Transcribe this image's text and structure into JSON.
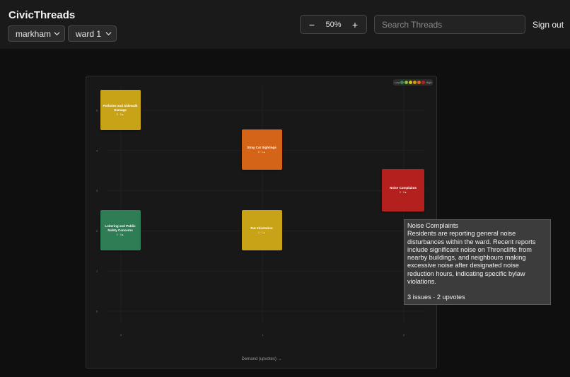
{
  "app": {
    "title": "CivicThreads"
  },
  "filters": {
    "city": "markham",
    "ward": "ward 1"
  },
  "zoom": {
    "level_label": "50%",
    "minus": "−",
    "plus": "+"
  },
  "search": {
    "placeholder": "Search Threads",
    "value": ""
  },
  "auth": {
    "signout_label": "Sign out"
  },
  "legend": {
    "low_label": "Low",
    "high_label": "High",
    "colors": [
      "#2e8b57",
      "#8fbc3c",
      "#d4c21a",
      "#d49b1a",
      "#d2691e",
      "#b22222"
    ]
  },
  "chart_data": {
    "type": "scatter",
    "xlabel": "Demand (upvotes) →",
    "ylabel": "",
    "xlim": [
      0,
      2
    ],
    "ylim": [
      0,
      5
    ],
    "x_ticks": [
      "0",
      "1",
      "2"
    ],
    "y_ticks": [
      "0",
      "1",
      "2",
      "3",
      "4",
      "5"
    ],
    "grid": true,
    "points": [
      {
        "title": "Potholes and Sidewalk Damage",
        "meta": "5 · 0▲",
        "issues": 5,
        "upvotes": 0,
        "color": "#c8a318"
      },
      {
        "title": "Stray Cat Sightings",
        "meta": "4 · 1▲",
        "issues": 4,
        "upvotes": 1,
        "color": "#d46417"
      },
      {
        "title": "Noise Complaints",
        "meta": "3 · 2▲",
        "issues": 3,
        "upvotes": 2,
        "color": "#b3201e"
      },
      {
        "title": "Loitering and Public Safety Concerns",
        "meta": "2 · 0▲",
        "issues": 2,
        "upvotes": 0,
        "color": "#2e7d55"
      },
      {
        "title": "Rat Infestation",
        "meta": "2 · 1▲",
        "issues": 2,
        "upvotes": 1,
        "color": "#c8a318"
      }
    ]
  },
  "tooltip": {
    "title": "Noise Complaints",
    "body": "Residents are reporting general noise disturbances within the ward. Recent reports include significant noise on Throncliffe from nearby buildings, and neighbours making excessive noise after designated noise reduction hours, indicating specific bylaw violations.",
    "stats": "3 issues · 2 upvotes"
  }
}
